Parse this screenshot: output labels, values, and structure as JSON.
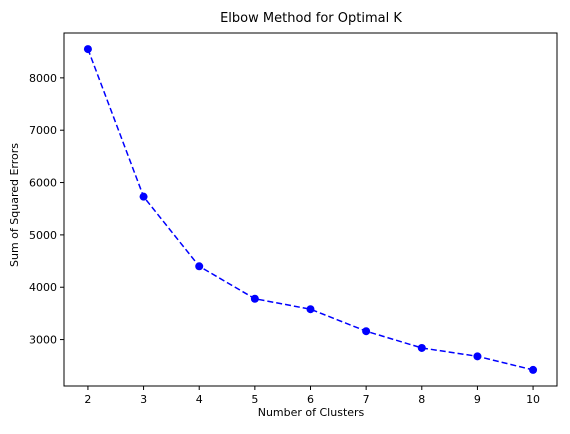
{
  "chart_data": {
    "type": "line",
    "title": "Elbow Method for Optimal K",
    "xlabel": "Number of Clusters",
    "ylabel": "Sum of Squared Errors",
    "x": [
      2,
      3,
      4,
      5,
      6,
      7,
      8,
      9,
      10
    ],
    "series": [
      {
        "values": [
          8550,
          5730,
          4400,
          3780,
          3580,
          3160,
          2840,
          2680,
          2420
        ],
        "color": "#0000ff",
        "line_style": "dashed",
        "marker": "circle"
      }
    ],
    "xticks": [
      "2",
      "3",
      "4",
      "5",
      "6",
      "7",
      "8",
      "9",
      "10"
    ],
    "yticks": [
      "3000",
      "4000",
      "5000",
      "6000",
      "7000",
      "8000"
    ],
    "xlim": [
      1.57,
      10.43
    ],
    "ylim": [
      2113,
      8857
    ],
    "grid": false
  }
}
